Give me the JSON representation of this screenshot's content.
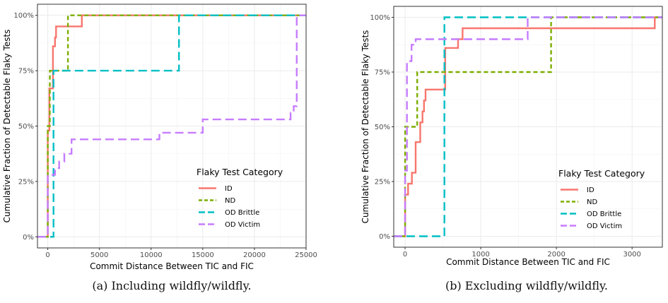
{
  "chart_data": [
    {
      "type": "line",
      "caption": "(a) Including wildfly/wildfly.",
      "xlabel": "Commit Distance Between TIC and FIC",
      "ylabel": "Cumulative Fraction of Detectable Flaky Tests",
      "xlim": [
        -1000,
        25000
      ],
      "ylim": [
        0,
        1
      ],
      "xticks": [
        0,
        5000,
        10000,
        15000,
        20000,
        25000
      ],
      "xtick_labels": [
        "0",
        "5000",
        "10000",
        "15000",
        "20000",
        "25000"
      ],
      "yticks": [
        0,
        0.25,
        0.5,
        0.75,
        1.0
      ],
      "ytick_labels": [
        "0%",
        "25%",
        "50%",
        "75%",
        "100%"
      ],
      "grid": true,
      "legend": {
        "title": "Flaky Test Category",
        "placement": "bottom-right"
      },
      "series": [
        {
          "name": "ID",
          "color": "#F8766D",
          "dash": "solid",
          "points": [
            [
              -1000,
              0
            ],
            [
              0,
              0
            ],
            [
              0,
              0.48
            ],
            [
              150,
              0.48
            ],
            [
              150,
              0.67
            ],
            [
              500,
              0.67
            ],
            [
              500,
              0.86
            ],
            [
              700,
              0.86
            ],
            [
              700,
              0.9
            ],
            [
              800,
              0.9
            ],
            [
              800,
              0.95
            ],
            [
              3300,
              0.95
            ],
            [
              3300,
              1.0
            ],
            [
              25000,
              1.0
            ]
          ]
        },
        {
          "name": "ND",
          "color": "#7CAE00",
          "dash": "short",
          "points": [
            [
              -1000,
              0
            ],
            [
              0,
              0
            ],
            [
              0,
              0.5
            ],
            [
              200,
              0.5
            ],
            [
              200,
              0.75
            ],
            [
              1950,
              0.75
            ],
            [
              1950,
              1.0
            ],
            [
              25000,
              1.0
            ]
          ]
        },
        {
          "name": "OD Brittle",
          "color": "#00BFC4",
          "dash": "long",
          "points": [
            [
              -1000,
              0
            ],
            [
              550,
              0
            ],
            [
              550,
              0.75
            ],
            [
              12700,
              0.75
            ],
            [
              12700,
              1.0
            ],
            [
              25000,
              1.0
            ]
          ]
        },
        {
          "name": "OD Victim",
          "color": "#C77CFF",
          "dash": "long",
          "points": [
            [
              -1000,
              0
            ],
            [
              0,
              0
            ],
            [
              0,
              0.28
            ],
            [
              700,
              0.28
            ],
            [
              700,
              0.31
            ],
            [
              1100,
              0.31
            ],
            [
              1100,
              0.34
            ],
            [
              1600,
              0.34
            ],
            [
              1600,
              0.375
            ],
            [
              2300,
              0.375
            ],
            [
              2300,
              0.44
            ],
            [
              10800,
              0.44
            ],
            [
              10800,
              0.47
            ],
            [
              15000,
              0.47
            ],
            [
              15000,
              0.53
            ],
            [
              23500,
              0.53
            ],
            [
              23500,
              0.56
            ],
            [
              23800,
              0.56
            ],
            [
              23800,
              0.59
            ],
            [
              24100,
              0.59
            ],
            [
              24100,
              1.0
            ],
            [
              25000,
              1.0
            ]
          ]
        }
      ]
    },
    {
      "type": "line",
      "caption": "(b) Excluding wildfly/wildfly.",
      "xlabel": "Commit Distance Between TIC and FIC",
      "ylabel": "Cumulative Fraction of Detectable Flaky Tests",
      "xlim": [
        -150,
        3400
      ],
      "ylim": [
        0,
        1
      ],
      "xticks": [
        0,
        1000,
        2000,
        3000
      ],
      "xtick_labels": [
        "0",
        "1000",
        "2000",
        "3000"
      ],
      "yticks": [
        0,
        0.25,
        0.5,
        0.75,
        1.0
      ],
      "ytick_labels": [
        "0%",
        "25%",
        "50%",
        "75%",
        "100%"
      ],
      "grid": true,
      "legend": {
        "title": "Flaky Test Category",
        "placement": "bottom-right"
      },
      "series": [
        {
          "name": "ID",
          "color": "#F8766D",
          "dash": "solid",
          "points": [
            [
              -150,
              0
            ],
            [
              0,
              0
            ],
            [
              0,
              0.19
            ],
            [
              40,
              0.19
            ],
            [
              40,
              0.24
            ],
            [
              90,
              0.24
            ],
            [
              90,
              0.29
            ],
            [
              140,
              0.29
            ],
            [
              140,
              0.43
            ],
            [
              200,
              0.43
            ],
            [
              200,
              0.52
            ],
            [
              230,
              0.52
            ],
            [
              230,
              0.57
            ],
            [
              250,
              0.57
            ],
            [
              250,
              0.62
            ],
            [
              270,
              0.62
            ],
            [
              270,
              0.67
            ],
            [
              530,
              0.67
            ],
            [
              530,
              0.86
            ],
            [
              700,
              0.86
            ],
            [
              700,
              0.9
            ],
            [
              760,
              0.9
            ],
            [
              760,
              0.95
            ],
            [
              3300,
              0.95
            ],
            [
              3300,
              1.0
            ],
            [
              3400,
              1.0
            ]
          ]
        },
        {
          "name": "ND",
          "color": "#7CAE00",
          "dash": "short",
          "points": [
            [
              -150,
              0
            ],
            [
              0,
              0
            ],
            [
              0,
              0.5
            ],
            [
              160,
              0.5
            ],
            [
              160,
              0.75
            ],
            [
              1930,
              0.75
            ],
            [
              1930,
              1.0
            ],
            [
              3400,
              1.0
            ]
          ]
        },
        {
          "name": "OD Brittle",
          "color": "#00BFC4",
          "dash": "long",
          "points": [
            [
              -150,
              0
            ],
            [
              520,
              0
            ],
            [
              520,
              1.0
            ],
            [
              3400,
              1.0
            ]
          ]
        },
        {
          "name": "OD Victim",
          "color": "#C77CFF",
          "dash": "long",
          "points": [
            [
              -150,
              0
            ],
            [
              0,
              0
            ],
            [
              0,
              0.3
            ],
            [
              25,
              0.3
            ],
            [
              25,
              0.8
            ],
            [
              85,
              0.8
            ],
            [
              85,
              0.875
            ],
            [
              140,
              0.875
            ],
            [
              140,
              0.9
            ],
            [
              1620,
              0.9
            ],
            [
              1620,
              1.0
            ],
            [
              3400,
              1.0
            ]
          ]
        }
      ]
    }
  ]
}
